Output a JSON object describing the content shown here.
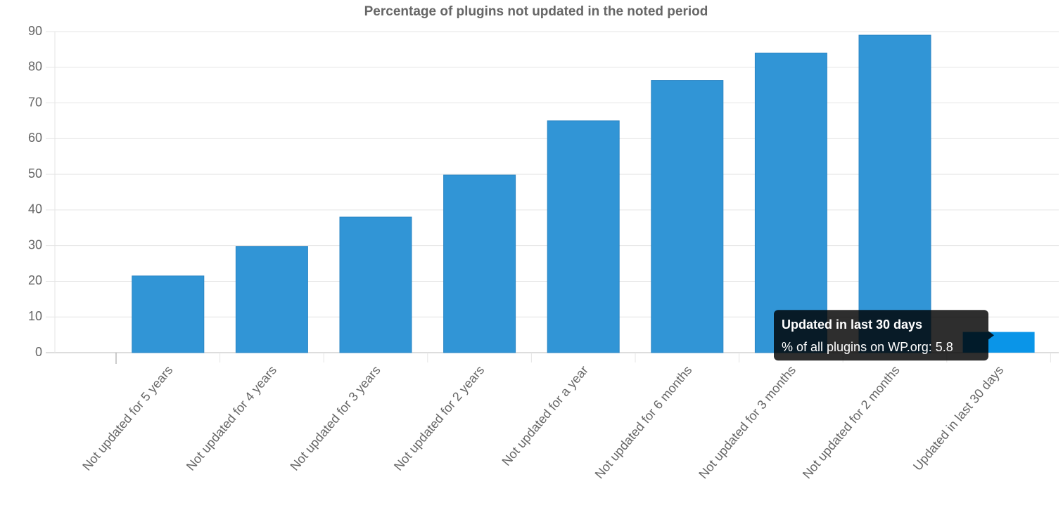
{
  "chart_data": {
    "type": "bar",
    "title": "Percentage of plugins not updated in the noted period",
    "categories": [
      "Not updated for 5 years",
      "Not updated for 4 years",
      "Not updated for 3 years",
      "Not updated for 2 years",
      "Not updated for a year",
      "Not updated for 6 months",
      "Not updated for 3 months",
      "Not updated for 2 months",
      "Updated in last 30 days"
    ],
    "values": [
      21.5,
      29.8,
      38,
      49.8,
      65,
      76.3,
      84,
      89,
      5.8
    ],
    "color": "#3195d6",
    "ylim": [
      0,
      90
    ],
    "yticks": [
      0,
      10,
      20,
      30,
      40,
      50,
      60,
      70,
      80,
      90
    ],
    "grid": true,
    "tooltip": {
      "index": 8,
      "color": "#0a95e8",
      "label": "% of all plugins on WP.org: 5.8"
    }
  }
}
